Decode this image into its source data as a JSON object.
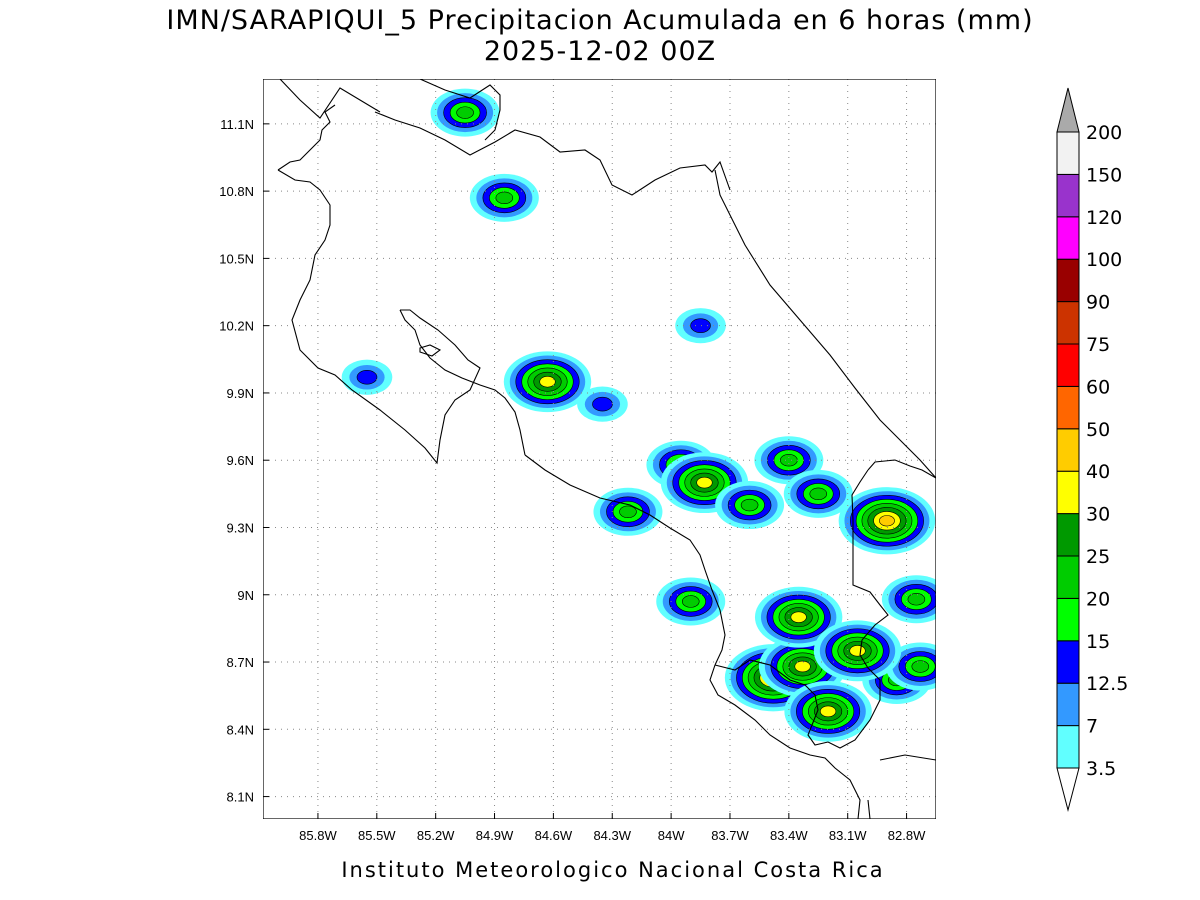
{
  "header": {
    "title": "IMN/SARAPIQUI_5 Precipitacion Acumulada en 6 horas (mm)",
    "subtitle": "2025-12-02 00Z"
  },
  "footer": {
    "credit": "Instituto Meteorologico Nacional Costa Rica"
  },
  "map": {
    "lon_range": [
      -86.08,
      -82.65
    ],
    "lat_range": [
      8.0,
      11.3
    ],
    "x_tick_labels": [
      "85.8W",
      "85.5W",
      "85.2W",
      "84.9W",
      "84.6W",
      "84.3W",
      "84W",
      "83.7W",
      "83.4W",
      "83.1W",
      "82.8W"
    ],
    "x_tick_values": [
      -85.8,
      -85.5,
      -85.2,
      -84.9,
      -84.6,
      -84.3,
      -84.0,
      -83.7,
      -83.4,
      -83.1,
      -82.8
    ],
    "y_tick_labels": [
      "11.1N",
      "10.8N",
      "10.5N",
      "10.2N",
      "9.9N",
      "9.6N",
      "9.3N",
      "9N",
      "8.7N",
      "8.4N",
      "8.1N"
    ],
    "y_tick_values": [
      11.1,
      10.8,
      10.5,
      10.2,
      9.9,
      9.6,
      9.3,
      9.0,
      8.7,
      8.4,
      8.1
    ],
    "grid": "dotted",
    "coastline_color": "#000000"
  },
  "colorbar": {
    "labels": [
      "3.5",
      "7",
      "12.5",
      "15",
      "20",
      "25",
      "30",
      "40",
      "50",
      "60",
      "75",
      "90",
      "100",
      "120",
      "150",
      "200"
    ],
    "colors": [
      "#61ffff",
      "#3399ff",
      "#0000ff",
      "#00ff00",
      "#00cc00",
      "#009900",
      "#ffff00",
      "#ffcc00",
      "#ff6600",
      "#ff0000",
      "#cc3300",
      "#990000",
      "#ff00ff",
      "#9933cc",
      "#f2f2f2"
    ],
    "over_color": "#aaaaaa",
    "under_color": "#ffffff"
  },
  "chart_data": {
    "type": "heatmap",
    "title": "IMN/SARAPIQUI_5 Precipitacion Acumulada en 6 horas (mm)",
    "subtitle": "2025-12-02 00Z",
    "variable": "6-hour accumulated precipitation",
    "units": "mm",
    "xlim": [
      -86.08,
      -82.65
    ],
    "ylim": [
      8.0,
      11.3
    ],
    "levels": [
      3.5,
      7,
      12.5,
      15,
      20,
      25,
      30,
      40,
      50,
      60,
      75,
      90,
      100,
      120,
      150,
      200
    ],
    "rain_cells": [
      {
        "lon": -85.05,
        "lat": 11.15,
        "max_mm": 20
      },
      {
        "lon": -84.85,
        "lat": 10.77,
        "max_mm": 20
      },
      {
        "lon": -84.63,
        "lat": 9.95,
        "max_mm": 30
      },
      {
        "lon": -85.55,
        "lat": 9.97,
        "max_mm": 12.5
      },
      {
        "lon": -83.85,
        "lat": 10.2,
        "max_mm": 12.5
      },
      {
        "lon": -84.35,
        "lat": 9.85,
        "max_mm": 12.5
      },
      {
        "lon": -83.95,
        "lat": 9.58,
        "max_mm": 20
      },
      {
        "lon": -83.83,
        "lat": 9.5,
        "max_mm": 30
      },
      {
        "lon": -83.6,
        "lat": 9.4,
        "max_mm": 20
      },
      {
        "lon": -83.4,
        "lat": 9.6,
        "max_mm": 20
      },
      {
        "lon": -83.25,
        "lat": 9.45,
        "max_mm": 20
      },
      {
        "lon": -82.9,
        "lat": 9.33,
        "max_mm": 40
      },
      {
        "lon": -84.22,
        "lat": 9.37,
        "max_mm": 20
      },
      {
        "lon": -83.9,
        "lat": 8.97,
        "max_mm": 20
      },
      {
        "lon": -83.48,
        "lat": 8.63,
        "max_mm": 40
      },
      {
        "lon": -83.33,
        "lat": 8.68,
        "max_mm": 30
      },
      {
        "lon": -83.35,
        "lat": 8.9,
        "max_mm": 30
      },
      {
        "lon": -83.2,
        "lat": 8.48,
        "max_mm": 30
      },
      {
        "lon": -82.85,
        "lat": 8.62,
        "max_mm": 20
      },
      {
        "lon": -82.73,
        "lat": 8.68,
        "max_mm": 20
      },
      {
        "lon": -82.75,
        "lat": 8.98,
        "max_mm": 20
      },
      {
        "lon": -83.05,
        "lat": 8.75,
        "max_mm": 30
      }
    ]
  }
}
